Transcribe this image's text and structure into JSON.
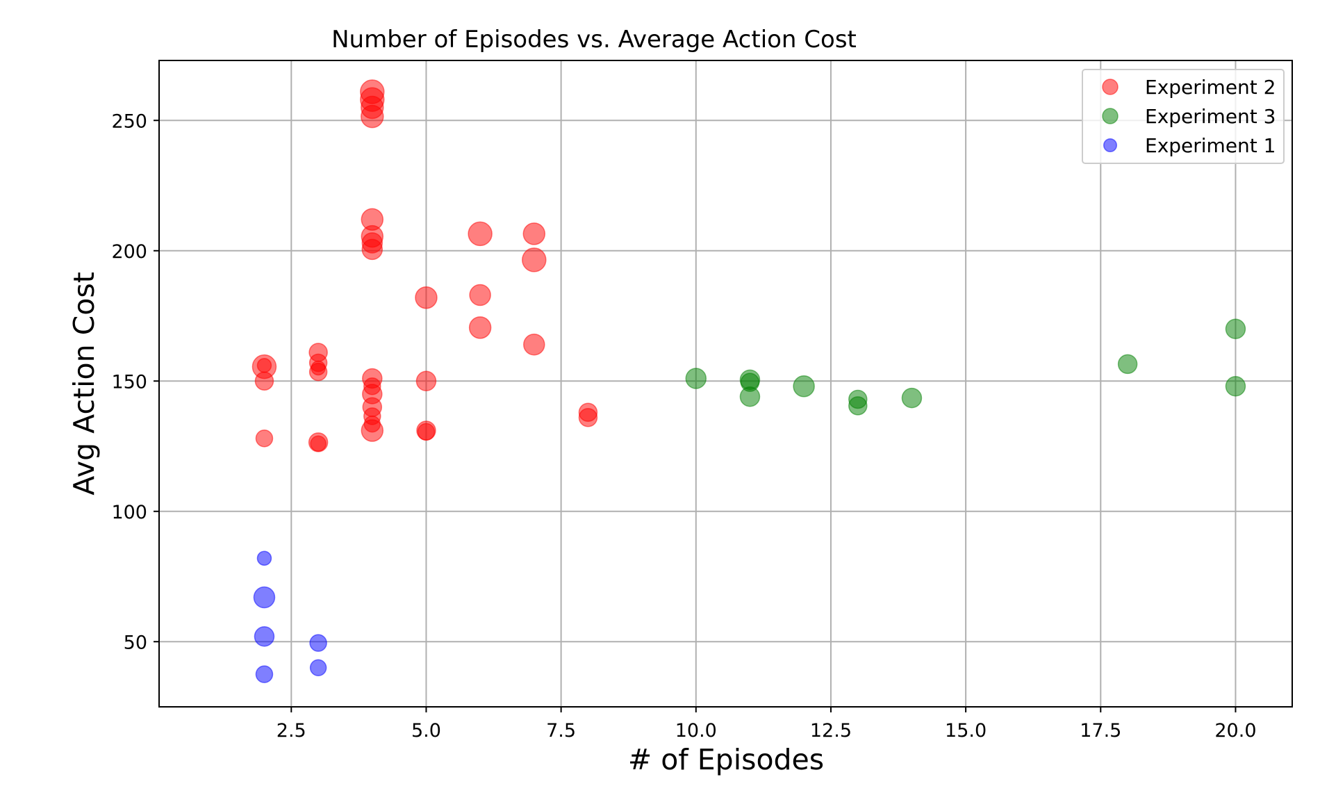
{
  "chart_data": {
    "type": "scatter",
    "title": "Number of Episodes vs. Average Action Cost",
    "xlabel": "# of Episodes",
    "ylabel": "Avg Action Cost",
    "xlim": [
      0.05,
      21.05
    ],
    "ylim": [
      25,
      273
    ],
    "xticks": [
      2.5,
      5.0,
      7.5,
      10.0,
      12.5,
      15.0,
      17.5,
      20.0
    ],
    "xtick_labels": [
      "2.5",
      "5.0",
      "7.5",
      "10.0",
      "12.5",
      "15.0",
      "17.5",
      "20.0"
    ],
    "yticks": [
      50,
      100,
      150,
      200,
      250
    ],
    "ytick_labels": [
      "50",
      "100",
      "150",
      "200",
      "250"
    ],
    "grid": true,
    "legend_position": "top-right",
    "series": [
      {
        "name": "Experiment 2",
        "color": "#ff0000",
        "points": [
          {
            "x": 2,
            "y": 155.5,
            "size": 1.0
          },
          {
            "x": 2,
            "y": 156,
            "size": 0.3
          },
          {
            "x": 2,
            "y": 150,
            "size": 0.6
          },
          {
            "x": 2,
            "y": 128,
            "size": 0.5
          },
          {
            "x": 3,
            "y": 161,
            "size": 0.6
          },
          {
            "x": 3,
            "y": 157,
            "size": 0.55
          },
          {
            "x": 3,
            "y": 155,
            "size": 0.3
          },
          {
            "x": 3,
            "y": 153.5,
            "size": 0.55
          },
          {
            "x": 3,
            "y": 126.5,
            "size": 0.65
          },
          {
            "x": 3,
            "y": 126,
            "size": 0.4
          },
          {
            "x": 4,
            "y": 261,
            "size": 1.0
          },
          {
            "x": 4,
            "y": 258,
            "size": 1.0
          },
          {
            "x": 4,
            "y": 255,
            "size": 0.9
          },
          {
            "x": 4,
            "y": 251.5,
            "size": 0.9
          },
          {
            "x": 4,
            "y": 212,
            "size": 0.85
          },
          {
            "x": 4,
            "y": 205.5,
            "size": 0.85
          },
          {
            "x": 4,
            "y": 203,
            "size": 0.75
          },
          {
            "x": 4,
            "y": 200.5,
            "size": 0.75
          },
          {
            "x": 4,
            "y": 151,
            "size": 0.7
          },
          {
            "x": 4,
            "y": 148,
            "size": 0.5
          },
          {
            "x": 4,
            "y": 145,
            "size": 0.7
          },
          {
            "x": 4,
            "y": 140,
            "size": 0.65
          },
          {
            "x": 4,
            "y": 136.5,
            "size": 0.5
          },
          {
            "x": 4,
            "y": 133.5,
            "size": 0.45
          },
          {
            "x": 4,
            "y": 131,
            "size": 0.85
          },
          {
            "x": 5,
            "y": 182,
            "size": 0.85
          },
          {
            "x": 5,
            "y": 150,
            "size": 0.7
          },
          {
            "x": 5,
            "y": 131,
            "size": 0.65
          },
          {
            "x": 5,
            "y": 130.5,
            "size": 0.5
          },
          {
            "x": 6,
            "y": 206.5,
            "size": 1.0
          },
          {
            "x": 6,
            "y": 183,
            "size": 0.8
          },
          {
            "x": 6,
            "y": 170.5,
            "size": 0.85
          },
          {
            "x": 7,
            "y": 206.5,
            "size": 0.85
          },
          {
            "x": 7,
            "y": 196.5,
            "size": 1.0
          },
          {
            "x": 7,
            "y": 164,
            "size": 0.8
          },
          {
            "x": 8,
            "y": 138,
            "size": 0.6
          },
          {
            "x": 8,
            "y": 136,
            "size": 0.6
          }
        ]
      },
      {
        "name": "Experiment 3",
        "color": "#008000",
        "points": [
          {
            "x": 10,
            "y": 151,
            "size": 0.75
          },
          {
            "x": 11,
            "y": 150.5,
            "size": 0.7
          },
          {
            "x": 11,
            "y": 149.5,
            "size": 0.6
          },
          {
            "x": 11,
            "y": 144,
            "size": 0.7
          },
          {
            "x": 12,
            "y": 148,
            "size": 0.8
          },
          {
            "x": 13,
            "y": 143,
            "size": 0.6
          },
          {
            "x": 13,
            "y": 140.5,
            "size": 0.6
          },
          {
            "x": 14,
            "y": 143.5,
            "size": 0.7
          },
          {
            "x": 18,
            "y": 156.5,
            "size": 0.65
          },
          {
            "x": 20,
            "y": 170,
            "size": 0.7
          },
          {
            "x": 20,
            "y": 148,
            "size": 0.7
          }
        ]
      },
      {
        "name": "Experiment 1",
        "color": "#0000ff",
        "points": [
          {
            "x": 2,
            "y": 82,
            "size": 0.3
          },
          {
            "x": 2,
            "y": 67,
            "size": 0.8
          },
          {
            "x": 2,
            "y": 52,
            "size": 0.7
          },
          {
            "x": 2,
            "y": 37.5,
            "size": 0.5
          },
          {
            "x": 3,
            "y": 49.5,
            "size": 0.5
          },
          {
            "x": 3,
            "y": 40,
            "size": 0.45
          }
        ]
      }
    ]
  }
}
